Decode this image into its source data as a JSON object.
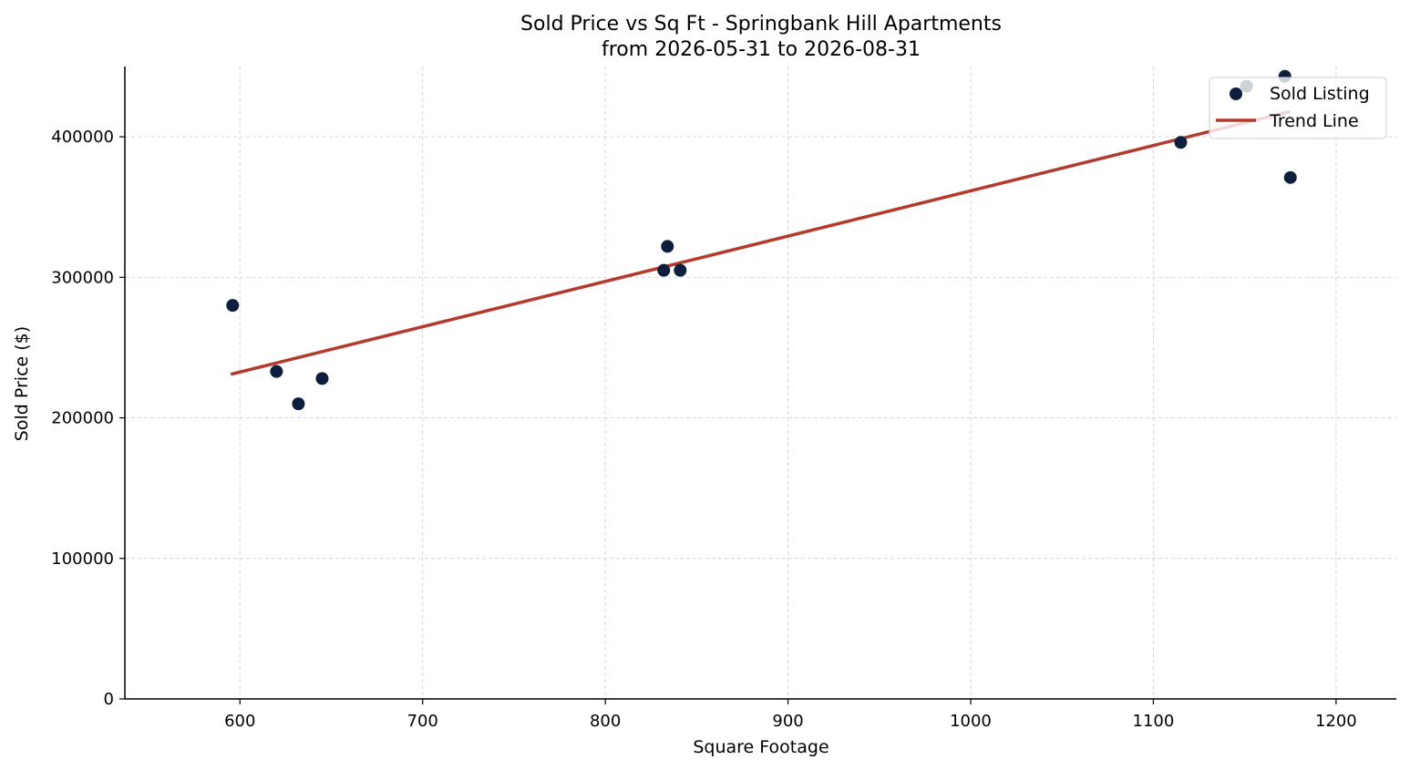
{
  "chart_data": {
    "type": "scatter",
    "title": "Sold Price vs Sq Ft - Springbank Hill Apartments",
    "subtitle": "from 2026-05-31 to 2026-08-31",
    "xlabel": "Square Footage",
    "ylabel": "Sold Price ($)",
    "xlim": [
      537,
      1233
    ],
    "ylim": [
      0,
      450000
    ],
    "xticks": [
      600,
      700,
      800,
      900,
      1000,
      1100,
      1200
    ],
    "yticks": [
      0,
      100000,
      200000,
      300000,
      400000
    ],
    "xtick_labels": [
      "600",
      "700",
      "800",
      "900",
      "1000",
      "1100",
      "1200"
    ],
    "ytick_labels": [
      "0",
      "100000",
      "200000",
      "300000",
      "400000"
    ],
    "grid": true,
    "legend_position": "top-right",
    "series": [
      {
        "name": "Sold Listing",
        "kind": "scatter",
        "color": "#0d1f3c",
        "points": [
          {
            "x": 596,
            "y": 280000
          },
          {
            "x": 620,
            "y": 233000
          },
          {
            "x": 632,
            "y": 210000
          },
          {
            "x": 645,
            "y": 228000
          },
          {
            "x": 832,
            "y": 305000
          },
          {
            "x": 834,
            "y": 322000
          },
          {
            "x": 841,
            "y": 305000
          },
          {
            "x": 1115,
            "y": 396000
          },
          {
            "x": 1151,
            "y": 436000
          },
          {
            "x": 1172,
            "y": 443000
          },
          {
            "x": 1175,
            "y": 371000
          }
        ]
      },
      {
        "name": "Trend Line",
        "kind": "line",
        "color": "#b33a2d",
        "points": [
          {
            "x": 595,
            "y": 231000
          },
          {
            "x": 1175,
            "y": 418000
          }
        ]
      }
    ]
  }
}
